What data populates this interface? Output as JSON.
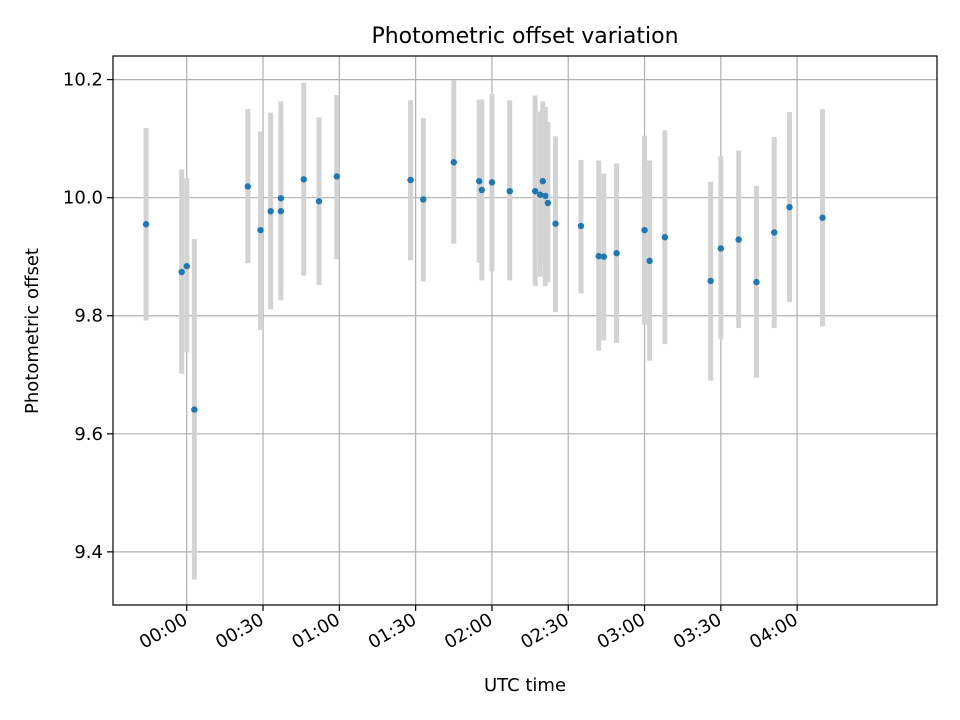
{
  "chart_data": {
    "type": "scatter",
    "title": "Photometric offset variation",
    "xlabel": "UTC time",
    "ylabel": "Photometric offset",
    "x_ticks": [
      "00:00",
      "00:30",
      "01:00",
      "01:30",
      "02:00",
      "02:30",
      "03:00",
      "03:30",
      "04:00"
    ],
    "y_ticks": [
      "9.4",
      "9.6",
      "9.8",
      "10.0",
      "10.2"
    ],
    "xlim": [
      "-00:29",
      "04:55"
    ],
    "ylim": [
      9.31,
      10.24
    ],
    "grid": true,
    "colors": {
      "points": "#1f77b4",
      "errorbars": "#d3d3d3",
      "grid": "#b0b0b0"
    },
    "points": [
      {
        "x": "-00:16",
        "y": 9.955,
        "ylow": 9.792,
        "yhigh": 10.118
      },
      {
        "x": "-00:02",
        "y": 9.874,
        "ylow": 9.702,
        "yhigh": 10.048
      },
      {
        "x": "00:00",
        "y": 9.884,
        "ylow": 9.738,
        "yhigh": 10.033
      },
      {
        "x": "00:03",
        "y": 9.641,
        "ylow": 9.353,
        "yhigh": 9.93
      },
      {
        "x": "00:24",
        "y": 10.019,
        "ylow": 9.889,
        "yhigh": 10.15
      },
      {
        "x": "00:29",
        "y": 9.945,
        "ylow": 9.776,
        "yhigh": 10.112
      },
      {
        "x": "00:33",
        "y": 9.977,
        "ylow": 9.811,
        "yhigh": 10.144
      },
      {
        "x": "00:37",
        "y": 9.999,
        "ylow": 9.834,
        "yhigh": 10.163
      },
      {
        "x": "00:37",
        "y": 9.977,
        "ylow": 9.826,
        "yhigh": 10.128
      },
      {
        "x": "00:46",
        "y": 10.031,
        "ylow": 9.868,
        "yhigh": 10.195
      },
      {
        "x": "00:52",
        "y": 9.994,
        "ylow": 9.852,
        "yhigh": 10.136
      },
      {
        "x": "00:59",
        "y": 10.036,
        "ylow": 9.896,
        "yhigh": 10.174
      },
      {
        "x": "01:28",
        "y": 10.03,
        "ylow": 9.894,
        "yhigh": 10.165
      },
      {
        "x": "01:33",
        "y": 9.997,
        "ylow": 9.858,
        "yhigh": 10.135
      },
      {
        "x": "01:45",
        "y": 10.06,
        "ylow": 9.922,
        "yhigh": 10.199
      },
      {
        "x": "01:55",
        "y": 10.028,
        "ylow": 9.89,
        "yhigh": 10.166
      },
      {
        "x": "01:56",
        "y": 10.013,
        "ylow": 9.86,
        "yhigh": 10.166
      },
      {
        "x": "02:00",
        "y": 10.026,
        "ylow": 9.875,
        "yhigh": 10.176
      },
      {
        "x": "02:07",
        "y": 10.011,
        "ylow": 9.86,
        "yhigh": 10.165
      },
      {
        "x": "02:17",
        "y": 10.011,
        "ylow": 9.85,
        "yhigh": 10.173
      },
      {
        "x": "02:19",
        "y": 10.005,
        "ylow": 9.866,
        "yhigh": 10.146
      },
      {
        "x": "02:20",
        "y": 10.028,
        "ylow": 9.891,
        "yhigh": 10.163
      },
      {
        "x": "02:21",
        "y": 10.003,
        "ylow": 9.85,
        "yhigh": 10.154
      },
      {
        "x": "02:22",
        "y": 9.991,
        "ylow": 9.857,
        "yhigh": 10.128
      },
      {
        "x": "02:25",
        "y": 9.956,
        "ylow": 9.806,
        "yhigh": 10.104
      },
      {
        "x": "02:35",
        "y": 9.952,
        "ylow": 9.838,
        "yhigh": 10.064
      },
      {
        "x": "02:42",
        "y": 9.901,
        "ylow": 9.741,
        "yhigh": 10.063
      },
      {
        "x": "02:44",
        "y": 9.9,
        "ylow": 9.758,
        "yhigh": 10.041
      },
      {
        "x": "02:49",
        "y": 9.906,
        "ylow": 9.754,
        "yhigh": 10.058
      },
      {
        "x": "03:00",
        "y": 9.945,
        "ylow": 9.785,
        "yhigh": 10.105
      },
      {
        "x": "03:02",
        "y": 9.893,
        "ylow": 9.724,
        "yhigh": 10.063
      },
      {
        "x": "03:08",
        "y": 9.933,
        "ylow": 9.752,
        "yhigh": 10.114
      },
      {
        "x": "03:26",
        "y": 9.859,
        "ylow": 9.69,
        "yhigh": 10.027
      },
      {
        "x": "03:30",
        "y": 9.914,
        "ylow": 9.76,
        "yhigh": 10.07
      },
      {
        "x": "03:37",
        "y": 9.929,
        "ylow": 9.779,
        "yhigh": 10.08
      },
      {
        "x": "03:44",
        "y": 9.857,
        "ylow": 9.695,
        "yhigh": 10.02
      },
      {
        "x": "03:51",
        "y": 9.941,
        "ylow": 9.779,
        "yhigh": 10.103
      },
      {
        "x": "03:57",
        "y": 9.984,
        "ylow": 9.823,
        "yhigh": 10.145
      },
      {
        "x": "04:10",
        "y": 9.966,
        "ylow": 9.782,
        "yhigh": 10.15
      }
    ]
  }
}
